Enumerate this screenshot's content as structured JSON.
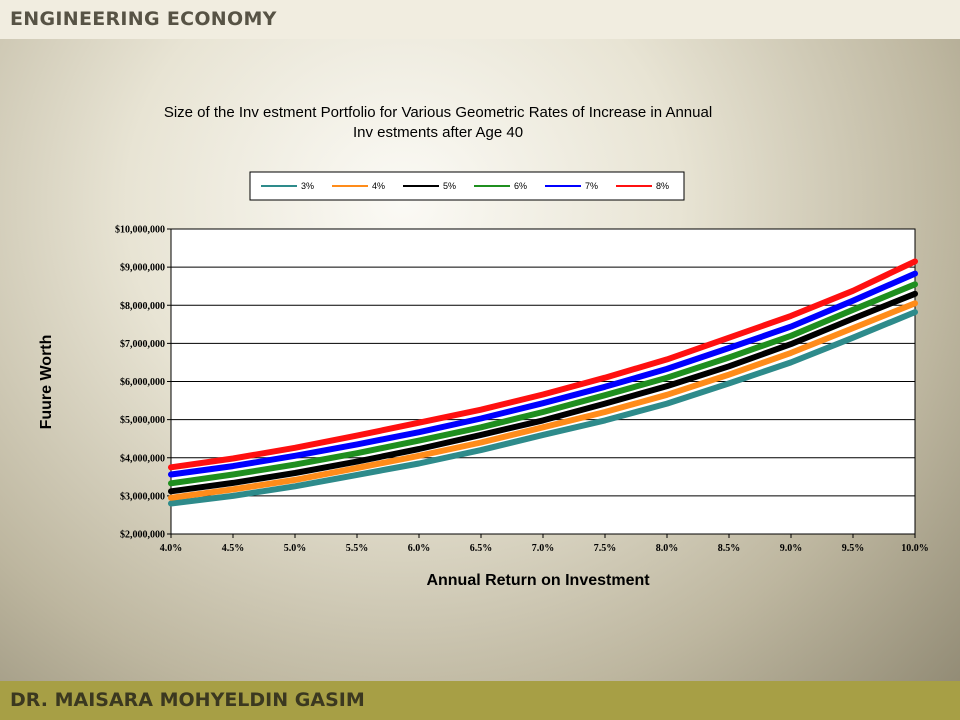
{
  "header": {
    "title": "ENGINEERING ECONOMY"
  },
  "footer": {
    "author": "DR. MAISARA MOHYELDIN GASIM"
  },
  "chart_data": {
    "type": "line",
    "title_lines": [
      "Size of the Inv estment Portfolio for Various Geometric Rates of Increase in Annual",
      "Inv estments after Age 40"
    ],
    "xlabel": "Annual Return on Investment",
    "ylabel": "Fuure Worth",
    "x_tick_labels": [
      "4.0%",
      "4.5%",
      "5.0%",
      "5.5%",
      "6.0%",
      "6.5%",
      "7.0%",
      "7.5%",
      "8.0%",
      "8.5%",
      "9.0%",
      "9.5%",
      "10.0%"
    ],
    "y_tick_labels": [
      "$2,000,000",
      "$3,000,000",
      "$4,000,000",
      "$5,000,000",
      "$6,000,000",
      "$7,000,000",
      "$8,000,000",
      "$9,000,000",
      "$10,000,000"
    ],
    "x": [
      4.0,
      4.5,
      5.0,
      5.5,
      6.0,
      6.5,
      7.0,
      7.5,
      8.0,
      8.5,
      9.0,
      9.5,
      10.0
    ],
    "xlim": [
      4.0,
      10.0
    ],
    "ylim": [
      2000000,
      10000000
    ],
    "grid": "horizontal",
    "legend_position": "top",
    "series": [
      {
        "name": "3%",
        "color": "#2e8b8b",
        "values": [
          2800000,
          3000000,
          3250000,
          3550000,
          3850000,
          4200000,
          4600000,
          4980000,
          5420000,
          5950000,
          6500000,
          7150000,
          7820000
        ]
      },
      {
        "name": "4%",
        "color": "#ff8c1a",
        "values": [
          2950000,
          3170000,
          3420000,
          3730000,
          4050000,
          4400000,
          4800000,
          5200000,
          5650000,
          6180000,
          6750000,
          7400000,
          8050000
        ]
      },
      {
        "name": "5%",
        "color": "#000000",
        "values": [
          3120000,
          3340000,
          3600000,
          3900000,
          4230000,
          4600000,
          4980000,
          5420000,
          5880000,
          6400000,
          6980000,
          7650000,
          8300000
        ]
      },
      {
        "name": "6%",
        "color": "#1f8f1f",
        "values": [
          3330000,
          3560000,
          3820000,
          4120000,
          4450000,
          4800000,
          5200000,
          5640000,
          6100000,
          6630000,
          7200000,
          7880000,
          8550000
        ]
      },
      {
        "name": "7%",
        "color": "#0000ff",
        "values": [
          3560000,
          3780000,
          4050000,
          4350000,
          4670000,
          5030000,
          5430000,
          5860000,
          6330000,
          6880000,
          7440000,
          8120000,
          8830000
        ]
      },
      {
        "name": "8%",
        "color": "#ff1010",
        "values": [
          3750000,
          3980000,
          4260000,
          4580000,
          4920000,
          5260000,
          5660000,
          6100000,
          6580000,
          7150000,
          7720000,
          8380000,
          9150000
        ]
      }
    ]
  }
}
